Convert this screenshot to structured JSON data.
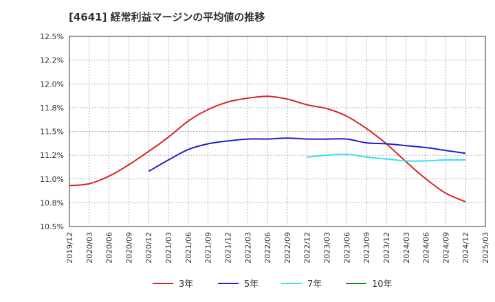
{
  "chart_title": "[4641]  経常利益マージンの平均値の推移",
  "chart_data": {
    "type": "line",
    "title": "[4641]  経常利益マージンの平均値の推移",
    "xlabel": "",
    "ylabel": "",
    "ylim": [
      10.5,
      12.5
    ],
    "y_ticks": [
      "10.5%",
      "10.8%",
      "11.0%",
      "11.2%",
      "11.5%",
      "11.8%",
      "12.0%",
      "12.2%",
      "12.5%"
    ],
    "x_ticks": [
      "2019/12",
      "2020/03",
      "2020/06",
      "2020/09",
      "2020/12",
      "2021/03",
      "2021/06",
      "2021/09",
      "2021/12",
      "2022/03",
      "2022/06",
      "2022/09",
      "2022/12",
      "2023/03",
      "2023/06",
      "2023/09",
      "2023/12",
      "2024/03",
      "2024/06",
      "2024/09",
      "2024/12",
      "2025/03"
    ],
    "grid": true,
    "legend_position": "bottom",
    "series": [
      {
        "name": "3年",
        "color": "#dd2222",
        "points": [
          [
            "2019/12",
            10.93
          ],
          [
            "2020/03",
            10.95
          ],
          [
            "2020/06",
            11.03
          ],
          [
            "2020/09",
            11.15
          ],
          [
            "2020/12",
            11.29
          ],
          [
            "2021/03",
            11.44
          ],
          [
            "2021/06",
            11.61
          ],
          [
            "2021/09",
            11.73
          ],
          [
            "2021/12",
            11.81
          ],
          [
            "2022/03",
            11.85
          ],
          [
            "2022/06",
            11.87
          ],
          [
            "2022/09",
            11.84
          ],
          [
            "2022/12",
            11.78
          ],
          [
            "2023/03",
            11.74
          ],
          [
            "2023/06",
            11.66
          ],
          [
            "2023/09",
            11.53
          ],
          [
            "2023/12",
            11.37
          ],
          [
            "2024/03",
            11.18
          ],
          [
            "2024/06",
            11.0
          ],
          [
            "2024/09",
            10.85
          ],
          [
            "2024/12",
            10.76
          ]
        ]
      },
      {
        "name": "5年",
        "color": "#1f1fcc",
        "points": [
          [
            "2020/12",
            11.08
          ],
          [
            "2021/03",
            11.2
          ],
          [
            "2021/06",
            11.31
          ],
          [
            "2021/09",
            11.37
          ],
          [
            "2021/12",
            11.4
          ],
          [
            "2022/03",
            11.42
          ],
          [
            "2022/06",
            11.42
          ],
          [
            "2022/09",
            11.43
          ],
          [
            "2022/12",
            11.42
          ],
          [
            "2023/03",
            11.42
          ],
          [
            "2023/06",
            11.42
          ],
          [
            "2023/09",
            11.38
          ],
          [
            "2023/12",
            11.37
          ],
          [
            "2024/03",
            11.35
          ],
          [
            "2024/06",
            11.33
          ],
          [
            "2024/09",
            11.3
          ],
          [
            "2024/12",
            11.27
          ]
        ]
      },
      {
        "name": "7年",
        "color": "#33e0ee",
        "points": [
          [
            "2022/12",
            11.23
          ],
          [
            "2023/03",
            11.25
          ],
          [
            "2023/06",
            11.26
          ],
          [
            "2023/09",
            11.23
          ],
          [
            "2023/12",
            11.21
          ],
          [
            "2024/03",
            11.19
          ],
          [
            "2024/06",
            11.19
          ],
          [
            "2024/09",
            11.2
          ],
          [
            "2024/12",
            11.2
          ]
        ]
      },
      {
        "name": "10年",
        "color": "#228822",
        "points": []
      }
    ]
  }
}
